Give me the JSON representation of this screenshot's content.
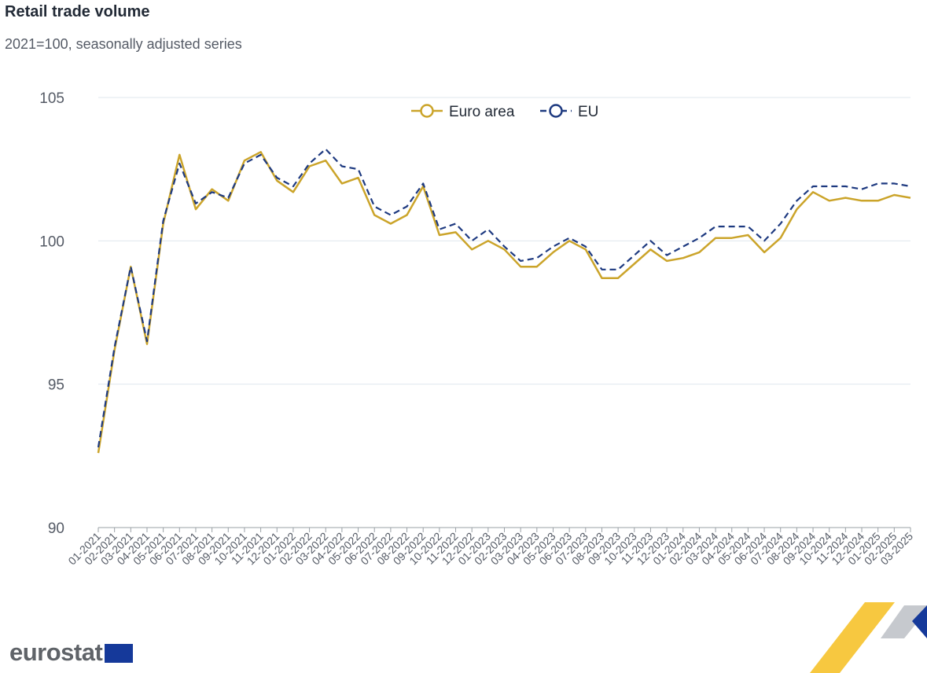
{
  "chart_data": {
    "type": "line",
    "title": "Retail trade volume",
    "subtitle": "2021=100, seasonally adjusted series",
    "x": [
      "01-2021",
      "02-2021",
      "03-2021",
      "04-2021",
      "05-2021",
      "06-2021",
      "07-2021",
      "08-2021",
      "09-2021",
      "10-2021",
      "11-2021",
      "12-2021",
      "01-2022",
      "02-2022",
      "03-2022",
      "04-2022",
      "05-2022",
      "06-2022",
      "07-2022",
      "08-2022",
      "09-2022",
      "10-2022",
      "11-2022",
      "12-2022",
      "01-2023",
      "02-2023",
      "03-2023",
      "04-2023",
      "05-2023",
      "06-2023",
      "07-2023",
      "08-2023",
      "09-2023",
      "10-2023",
      "11-2023",
      "12-2023",
      "01-2024",
      "02-2024",
      "03-2024",
      "04-2024",
      "05-2024",
      "06-2024",
      "07-2024",
      "08-2024",
      "09-2024",
      "10-2024",
      "11-2024",
      "12-2024",
      "01-2025",
      "02-2025",
      "03-2025"
    ],
    "series": [
      {
        "name": "Euro area",
        "color": "#cba42a",
        "style": "solid",
        "values": [
          92.6,
          96.2,
          99.1,
          96.4,
          100.6,
          103.0,
          101.1,
          101.8,
          101.4,
          102.8,
          103.1,
          102.1,
          101.7,
          102.6,
          102.8,
          102.0,
          102.2,
          100.9,
          100.6,
          100.9,
          101.9,
          100.2,
          100.3,
          99.7,
          100.0,
          99.7,
          99.1,
          99.1,
          99.6,
          100.0,
          99.7,
          98.7,
          98.7,
          99.2,
          99.7,
          99.3,
          99.4,
          99.6,
          100.1,
          100.1,
          100.2,
          99.6,
          100.1,
          101.1,
          101.7,
          101.4,
          101.5,
          101.4,
          101.4,
          101.6,
          101.5
        ]
      },
      {
        "name": "EU",
        "color": "#1e3a80",
        "style": "dashed",
        "values": [
          92.8,
          96.3,
          99.1,
          96.5,
          100.7,
          102.7,
          101.3,
          101.7,
          101.5,
          102.7,
          103.0,
          102.2,
          101.9,
          102.7,
          103.2,
          102.6,
          102.5,
          101.2,
          100.9,
          101.2,
          102.0,
          100.4,
          100.6,
          100.0,
          100.4,
          99.8,
          99.3,
          99.4,
          99.8,
          100.1,
          99.8,
          99.0,
          99.0,
          99.5,
          100.0,
          99.5,
          99.8,
          100.1,
          100.5,
          100.5,
          100.5,
          100.0,
          100.6,
          101.4,
          101.9,
          101.9,
          101.9,
          101.8,
          102.0,
          102.0,
          101.9
        ]
      }
    ],
    "yticks": [
      90,
      95,
      100,
      105
    ],
    "ylim": [
      90,
      105
    ],
    "grid": true,
    "legend": "top-center"
  },
  "footer": {
    "logo_text": "eurostat"
  },
  "colors": {
    "gridline": "#dfe7ee",
    "axis": "#9aa0a6",
    "tick_label": "#555b66",
    "brand_yellow": "#f6c22b",
    "brand_blue": "#15399a"
  }
}
